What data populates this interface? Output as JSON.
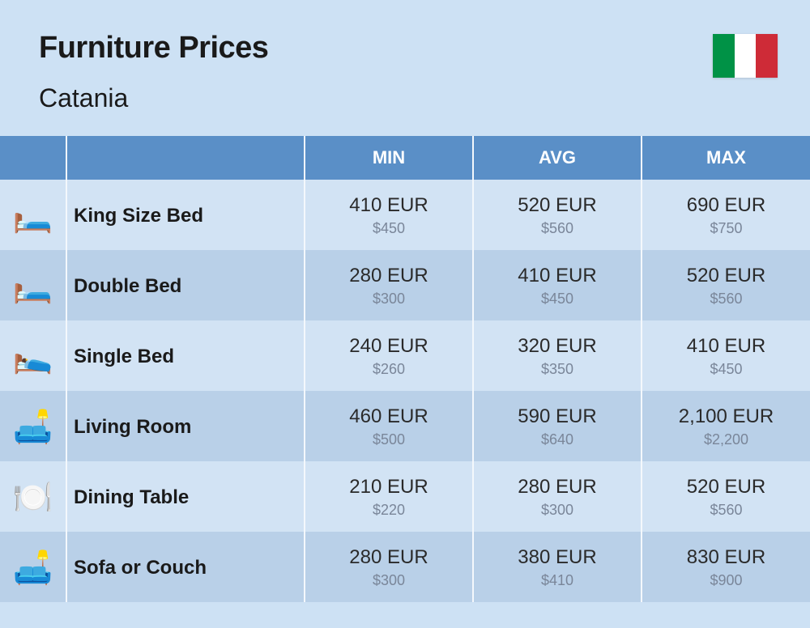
{
  "header": {
    "title": "Furniture Prices",
    "subtitle": "Catania",
    "flag_colors": [
      "#009246",
      "#ffffff",
      "#ce2b37"
    ]
  },
  "columns": {
    "min": "MIN",
    "avg": "AVG",
    "max": "MAX"
  },
  "styling": {
    "page_bg": "#cde1f4",
    "header_row_bg": "#5a8fc7",
    "header_row_text": "#ffffff",
    "row_odd_bg": "#d2e3f4",
    "row_even_bg": "#b9d0e8",
    "cell_border": "#f4f8fc",
    "eur_color": "#2a2a2a",
    "usd_color": "#7a8699",
    "title_fontsize": 38,
    "subtitle_fontsize": 32,
    "header_fontsize": 22,
    "name_fontsize": 24,
    "eur_fontsize": 24,
    "usd_fontsize": 18
  },
  "rows": [
    {
      "icon": "🛏️",
      "icon_name": "king-bed-icon",
      "name": "King Size Bed",
      "min_eur": "410 EUR",
      "min_usd": "$450",
      "avg_eur": "520 EUR",
      "avg_usd": "$560",
      "max_eur": "690 EUR",
      "max_usd": "$750"
    },
    {
      "icon": "🛏️",
      "icon_name": "double-bed-icon",
      "name": "Double Bed",
      "min_eur": "280 EUR",
      "min_usd": "$300",
      "avg_eur": "410 EUR",
      "avg_usd": "$450",
      "max_eur": "520 EUR",
      "max_usd": "$560"
    },
    {
      "icon": "🛌",
      "icon_name": "single-bed-icon",
      "name": "Single Bed",
      "min_eur": "240 EUR",
      "min_usd": "$260",
      "avg_eur": "320 EUR",
      "avg_usd": "$350",
      "max_eur": "410 EUR",
      "max_usd": "$450"
    },
    {
      "icon": "🛋️",
      "icon_name": "living-room-icon",
      "name": "Living Room",
      "min_eur": "460 EUR",
      "min_usd": "$500",
      "avg_eur": "590 EUR",
      "avg_usd": "$640",
      "max_eur": "2,100 EUR",
      "max_usd": "$2,200"
    },
    {
      "icon": "🍽️",
      "icon_name": "dining-table-icon",
      "name": "Dining Table",
      "min_eur": "210 EUR",
      "min_usd": "$220",
      "avg_eur": "280 EUR",
      "avg_usd": "$300",
      "max_eur": "520 EUR",
      "max_usd": "$560"
    },
    {
      "icon": "🛋️",
      "icon_name": "sofa-icon",
      "name": "Sofa or Couch",
      "min_eur": "280 EUR",
      "min_usd": "$300",
      "avg_eur": "380 EUR",
      "avg_usd": "$410",
      "max_eur": "830 EUR",
      "max_usd": "$900"
    }
  ]
}
